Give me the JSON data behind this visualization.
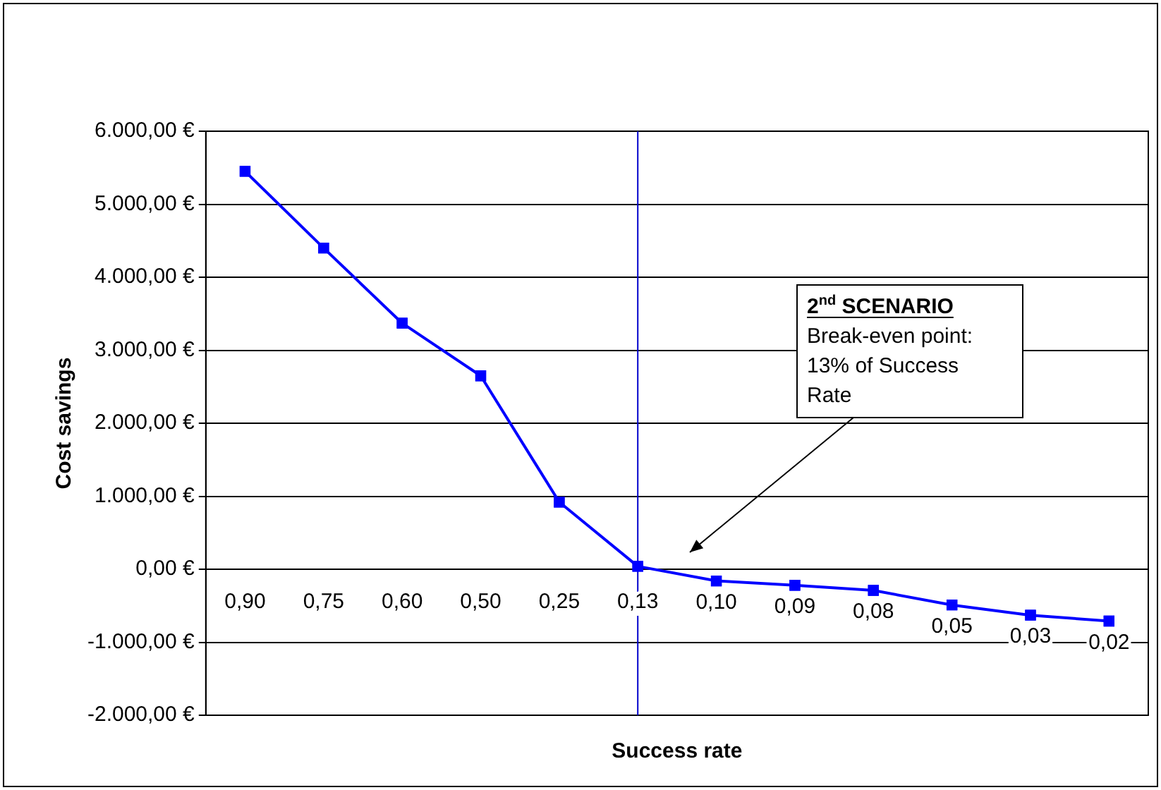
{
  "chart_data": {
    "type": "line",
    "xlabel": "Success rate",
    "ylabel": "Cost savings",
    "categories": [
      "0,90",
      "0,75",
      "0,60",
      "0,50",
      "0,25",
      "0,13",
      "0,10",
      "0,09",
      "0,08",
      "0,05",
      "0,03",
      "0,02"
    ],
    "series": [
      {
        "color": "#0000ff",
        "values": [
          5450,
          4400,
          3370,
          2650,
          920,
          40,
          -160,
          -220,
          -290,
          -490,
          -630,
          -710
        ]
      }
    ],
    "ylim": [
      -2000,
      6000
    ],
    "yticks": [
      {
        "value": -2000,
        "label": "-2.000,00 €"
      },
      {
        "value": -1000,
        "label": "-1.000,00 €"
      },
      {
        "value": 0,
        "label": "0,00 €"
      },
      {
        "value": 1000,
        "label": "1.000,00 €"
      },
      {
        "value": 2000,
        "label": "2.000,00 €"
      },
      {
        "value": 3000,
        "label": "3.000,00 €"
      },
      {
        "value": 4000,
        "label": "4.000,00 €"
      },
      {
        "value": 5000,
        "label": "5.000,00 €"
      },
      {
        "value": 6000,
        "label": "6.000,00 €"
      }
    ],
    "grid": "y",
    "legend": false,
    "marker": "square",
    "line_style": "solid",
    "ref_lines": [
      {
        "axis": "x",
        "value": "0,13",
        "color": "#0000cc"
      }
    ],
    "annotations": [
      "2$^{nd}$ SCENARIO\nBreak-even point:\n13% of Success\nRate"
    ]
  }
}
